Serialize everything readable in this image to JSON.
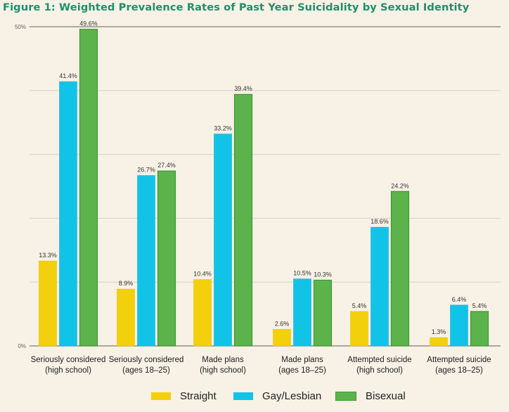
{
  "chart_data": {
    "type": "bar",
    "title": "Figure 1: Weighted Prevalence Rates of Past Year Suicidality by Sexual Identity",
    "xlabel": "",
    "ylabel": "",
    "ylim": [
      0,
      50
    ],
    "yticks": [
      0,
      10,
      20,
      30,
      40,
      50
    ],
    "ytick_labels": {
      "0": "0%",
      "50": "50%"
    },
    "grid": true,
    "legend_position": "bottom",
    "categories": [
      [
        "Seriously considered",
        "(high school)"
      ],
      [
        "Seriously considered",
        "(ages 18–25)"
      ],
      [
        "Made plans",
        "(high school)"
      ],
      [
        "Made plans",
        "(ages 18–25)"
      ],
      [
        "Attempted suicide",
        "(high school)"
      ],
      [
        "Attempted suicide",
        "(ages 18–25)"
      ]
    ],
    "series": [
      {
        "name": "Straight",
        "color": "#f2d10c",
        "values": [
          13.3,
          8.9,
          10.4,
          2.6,
          5.4,
          1.3
        ]
      },
      {
        "name": "Gay/Lesbian",
        "color": "#12c3e8",
        "values": [
          41.4,
          26.7,
          33.2,
          10.5,
          18.6,
          6.4
        ]
      },
      {
        "name": "Bisexual",
        "color": "#5cb34c",
        "values": [
          49.6,
          27.4,
          39.4,
          10.3,
          24.2,
          5.4
        ]
      }
    ],
    "value_label_suffix": "%"
  },
  "title": "Figure 1: Weighted Prevalence Rates of Past Year Suicidality by Sexual Identity",
  "legend": [
    {
      "label": "Straight",
      "color": "#f2d10c"
    },
    {
      "label": "Gay/Lesbian",
      "color": "#12c3e8"
    },
    {
      "label": "Bisexual",
      "color": "#5cb34c"
    }
  ]
}
